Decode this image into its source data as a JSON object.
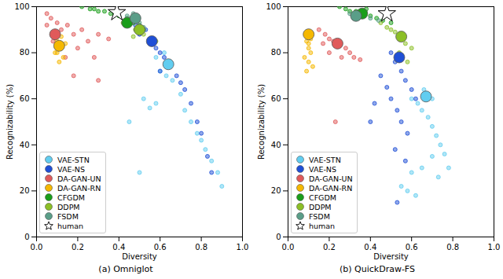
{
  "chart_data": [
    {
      "type": "scatter",
      "title": "(a) Omniglot",
      "x_label": "Diversity",
      "y_label": "Recognizability (%)",
      "xlim": [
        0,
        1
      ],
      "ylim": [
        0,
        100
      ],
      "xticks": [
        {
          "value": 0,
          "label": "0.0"
        },
        0.2,
        0.4,
        0.6,
        0.8,
        {
          "value": 1,
          "label": "1.0"
        }
      ],
      "yticks": [
        0,
        20,
        40,
        60,
        80,
        100
      ],
      "grid": false,
      "legend": "lower left",
      "series": [
        {
          "name": "VAE-STN",
          "color": "#62cdf0",
          "marker": "circle",
          "mean": [
            0.64,
            75
          ],
          "values": [
            [
              0.52,
              60
            ],
            [
              0.55,
              56
            ],
            [
              0.58,
              58
            ],
            [
              0.6,
              72
            ],
            [
              0.63,
              70
            ],
            [
              0.66,
              68
            ],
            [
              0.7,
              62
            ],
            [
              0.72,
              55
            ],
            [
              0.75,
              50
            ],
            [
              0.78,
              45
            ],
            [
              0.8,
              42
            ],
            [
              0.82,
              38
            ],
            [
              0.85,
              33
            ],
            [
              0.88,
              28
            ],
            [
              0.9,
              22
            ],
            [
              0.5,
              28
            ],
            [
              0.62,
              80
            ],
            [
              0.58,
              78
            ],
            [
              0.45,
              50
            ]
          ]
        },
        {
          "name": "VAE-NS",
          "color": "#1f4fd6",
          "marker": "circle",
          "mean": [
            0.56,
            85
          ],
          "values": [
            [
              0.5,
              88
            ],
            [
              0.53,
              90
            ],
            [
              0.55,
              86
            ],
            [
              0.58,
              82
            ],
            [
              0.6,
              80
            ],
            [
              0.62,
              78
            ],
            [
              0.65,
              75
            ],
            [
              0.68,
              70
            ],
            [
              0.7,
              67
            ],
            [
              0.72,
              64
            ],
            [
              0.75,
              58
            ],
            [
              0.78,
              50
            ],
            [
              0.8,
              45
            ],
            [
              0.83,
              35
            ],
            [
              0.85,
              28
            ],
            [
              0.48,
              92
            ],
            [
              0.6,
              72
            ]
          ]
        },
        {
          "name": "DA-GAN-UN",
          "color": "#e05a5a",
          "marker": "circle",
          "mean": [
            0.09,
            88
          ],
          "values": [
            [
              0.05,
              97
            ],
            [
              0.07,
              95
            ],
            [
              0.1,
              93
            ],
            [
              0.12,
              90
            ],
            [
              0.15,
              92
            ],
            [
              0.08,
              85
            ],
            [
              0.11,
              82
            ],
            [
              0.18,
              88
            ],
            [
              0.22,
              90
            ],
            [
              0.25,
              85
            ],
            [
              0.3,
              88
            ],
            [
              0.35,
              86
            ],
            [
              0.14,
              78
            ],
            [
              0.2,
              82
            ],
            [
              0.3,
              68
            ],
            [
              0.18,
              70
            ],
            [
              0.28,
              78
            ],
            [
              0.05,
              92
            ]
          ]
        },
        {
          "name": "DA-GAN-RN",
          "color": "#f5b800",
          "marker": "circle",
          "mean": [
            0.11,
            83
          ],
          "values": [
            [
              0.09,
              88
            ],
            [
              0.1,
              85
            ],
            [
              0.12,
              82
            ],
            [
              0.1,
              80
            ],
            [
              0.13,
              78
            ],
            [
              0.11,
              76
            ],
            [
              0.14,
              84
            ],
            [
              0.09,
              80
            ],
            [
              0.12,
              87
            ]
          ]
        },
        {
          "name": "CFGDM",
          "color": "#1a9e1a",
          "marker": "circle",
          "mean": [
            0.44,
            93
          ],
          "values": [
            [
              0.22,
              100
            ],
            [
              0.26,
              99
            ],
            [
              0.3,
              98
            ],
            [
              0.33,
              98
            ],
            [
              0.36,
              97
            ],
            [
              0.4,
              96
            ],
            [
              0.44,
              95
            ],
            [
              0.47,
              93
            ],
            [
              0.5,
              92
            ],
            [
              0.52,
              90
            ],
            [
              0.28,
              99
            ],
            [
              0.38,
              97
            ]
          ]
        },
        {
          "name": "DDPM",
          "color": "#8cbf26",
          "marker": "circle",
          "mean": [
            0.5,
            90
          ],
          "values": [
            [
              0.42,
              93
            ],
            [
              0.45,
              92
            ],
            [
              0.48,
              90
            ],
            [
              0.5,
              89
            ],
            [
              0.52,
              88
            ],
            [
              0.55,
              86
            ],
            [
              0.58,
              85
            ],
            [
              0.47,
              87
            ]
          ]
        },
        {
          "name": "FSDM",
          "color": "#5a9e88",
          "marker": "circle",
          "mean": [
            0.48,
            95
          ],
          "values": [
            [
              0.44,
              96
            ],
            [
              0.46,
              95
            ],
            [
              0.48,
              94
            ],
            [
              0.5,
              93
            ],
            [
              0.52,
              91
            ],
            [
              0.47,
              97
            ]
          ]
        },
        {
          "name": "human",
          "color": "#000000",
          "marker": "star",
          "values": [
            [
              0.39,
              97.5
            ]
          ]
        }
      ]
    },
    {
      "type": "scatter",
      "title": "(b) QuickDraw-FS",
      "x_label": "Diversity",
      "y_label": "Recognizability (%)",
      "xlim": [
        0,
        1
      ],
      "ylim": [
        0,
        100
      ],
      "xticks": [
        {
          "value": 0,
          "label": "0.0"
        },
        0.2,
        0.4,
        0.6,
        0.8,
        {
          "value": 1,
          "label": "1.0"
        }
      ],
      "yticks": [
        0,
        20,
        40,
        60,
        80,
        100
      ],
      "grid": false,
      "legend": "lower left",
      "series": [
        {
          "name": "VAE-STN",
          "color": "#62cdf0",
          "marker": "circle",
          "mean": [
            0.67,
            61
          ],
          "values": [
            [
              0.6,
              60
            ],
            [
              0.63,
              58
            ],
            [
              0.65,
              55
            ],
            [
              0.68,
              52
            ],
            [
              0.7,
              48
            ],
            [
              0.72,
              44
            ],
            [
              0.74,
              40
            ],
            [
              0.76,
              36
            ],
            [
              0.78,
              30
            ],
            [
              0.6,
              28
            ],
            [
              0.55,
              22
            ],
            [
              0.58,
              20
            ],
            [
              0.65,
              30
            ],
            [
              0.7,
              35
            ],
            [
              0.73,
              26
            ],
            [
              0.62,
              18
            ],
            [
              0.66,
              64
            ],
            [
              0.7,
              60
            ]
          ]
        },
        {
          "name": "VAE-NS",
          "color": "#1f4fd6",
          "marker": "circle",
          "mean": [
            0.54,
            78
          ],
          "values": [
            [
              0.5,
              80
            ],
            [
              0.52,
              76
            ],
            [
              0.55,
              72
            ],
            [
              0.57,
              68
            ],
            [
              0.6,
              64
            ],
            [
              0.62,
              60
            ],
            [
              0.45,
              70
            ],
            [
              0.48,
              65
            ],
            [
              0.5,
              60
            ],
            [
              0.53,
              55
            ],
            [
              0.55,
              50
            ],
            [
              0.42,
              58
            ],
            [
              0.4,
              50
            ],
            [
              0.52,
              38
            ],
            [
              0.57,
              33
            ],
            [
              0.53,
              15
            ],
            [
              0.58,
              45
            ]
          ]
        },
        {
          "name": "DA-GAN-UN",
          "color": "#e05a5a",
          "marker": "circle",
          "mean": [
            0.24,
            84
          ],
          "values": [
            [
              0.15,
              90
            ],
            [
              0.18,
              88
            ],
            [
              0.2,
              86
            ],
            [
              0.22,
              85
            ],
            [
              0.25,
              83
            ],
            [
              0.28,
              82
            ],
            [
              0.3,
              80
            ],
            [
              0.32,
              78
            ],
            [
              0.35,
              77
            ],
            [
              0.26,
              78
            ],
            [
              0.2,
              80
            ],
            [
              0.17,
              84
            ],
            [
              0.23,
              50
            ]
          ]
        },
        {
          "name": "DA-GAN-RN",
          "color": "#f5b800",
          "marker": "circle",
          "mean": [
            0.1,
            88
          ],
          "values": [
            [
              0.09,
              85
            ],
            [
              0.1,
              82
            ],
            [
              0.11,
              80
            ],
            [
              0.08,
              78
            ],
            [
              0.1,
              76
            ],
            [
              0.12,
              74
            ],
            [
              0.09,
              72
            ],
            [
              0.11,
              86
            ],
            [
              0.1,
              84
            ]
          ]
        },
        {
          "name": "CFGDM",
          "color": "#1a9e1a",
          "marker": "circle",
          "mean": [
            0.36,
            97
          ],
          "values": [
            [
              0.25,
              100
            ],
            [
              0.28,
              99
            ],
            [
              0.3,
              98
            ],
            [
              0.33,
              98
            ],
            [
              0.36,
              97
            ],
            [
              0.4,
              96
            ],
            [
              0.43,
              95
            ],
            [
              0.46,
              94
            ],
            [
              0.5,
              93
            ],
            [
              0.38,
              99
            ]
          ]
        },
        {
          "name": "DDPM",
          "color": "#8cbf26",
          "marker": "circle",
          "mean": [
            0.55,
            87
          ],
          "values": [
            [
              0.45,
              93
            ],
            [
              0.48,
              91
            ],
            [
              0.5,
              90
            ],
            [
              0.52,
              89
            ],
            [
              0.55,
              86
            ],
            [
              0.57,
              84
            ],
            [
              0.6,
              82
            ],
            [
              0.54,
              80
            ],
            [
              0.58,
              76
            ]
          ]
        },
        {
          "name": "FSDM",
          "color": "#5a9e88",
          "marker": "circle",
          "mean": [
            0.33,
            96
          ],
          "values": [
            [
              0.3,
              97
            ],
            [
              0.33,
              96
            ],
            [
              0.36,
              96
            ],
            [
              0.4,
              95
            ],
            [
              0.44,
              94
            ]
          ]
        },
        {
          "name": "human",
          "color": "#000000",
          "marker": "star",
          "values": [
            [
              0.48,
              97
            ]
          ]
        }
      ]
    }
  ]
}
